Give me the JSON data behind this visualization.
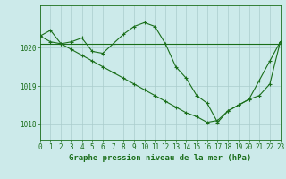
{
  "title": "Graphe pression niveau de la mer (hPa)",
  "background_color": "#cceaea",
  "grid_color": "#aacccc",
  "line_color": "#1a6e1a",
  "xlim": [
    0,
    23
  ],
  "ylim": [
    1017.6,
    1021.1
  ],
  "yticks": [
    1018,
    1019,
    1020
  ],
  "xticks": [
    0,
    1,
    2,
    3,
    4,
    5,
    6,
    7,
    8,
    9,
    10,
    11,
    12,
    13,
    14,
    15,
    16,
    17,
    18,
    19,
    20,
    21,
    22,
    23
  ],
  "series1_x": [
    0,
    1,
    2,
    3,
    4,
    5,
    6,
    7,
    8,
    9,
    10,
    11,
    12,
    13,
    14,
    15,
    16,
    17,
    18,
    19,
    20,
    21,
    22,
    23
  ],
  "series1_y": [
    1020.3,
    1020.45,
    1020.1,
    1020.15,
    1020.25,
    1019.9,
    1019.85,
    1020.1,
    1020.35,
    1020.55,
    1020.65,
    1020.55,
    1020.1,
    1019.5,
    1019.2,
    1018.75,
    1018.55,
    1018.05,
    1018.35,
    1018.5,
    1018.65,
    1019.15,
    1019.65,
    1020.15
  ],
  "series2_x": [
    0,
    1,
    2,
    3,
    4,
    5,
    6,
    7,
    8,
    9,
    10,
    11,
    12,
    13,
    14,
    15,
    16,
    17,
    18,
    19,
    20,
    21,
    22,
    23
  ],
  "series2_y": [
    1020.3,
    1020.15,
    1020.1,
    1019.95,
    1019.8,
    1019.65,
    1019.5,
    1019.35,
    1019.2,
    1019.05,
    1018.9,
    1018.75,
    1018.6,
    1018.45,
    1018.3,
    1018.2,
    1018.05,
    1018.1,
    1018.35,
    1018.5,
    1018.65,
    1018.75,
    1019.05,
    1020.15
  ],
  "ref_line_y": 1020.1,
  "marker": "+",
  "marker_size": 3.5,
  "line_width": 0.8,
  "tick_fontsize": 5.5,
  "title_fontsize": 6.5
}
